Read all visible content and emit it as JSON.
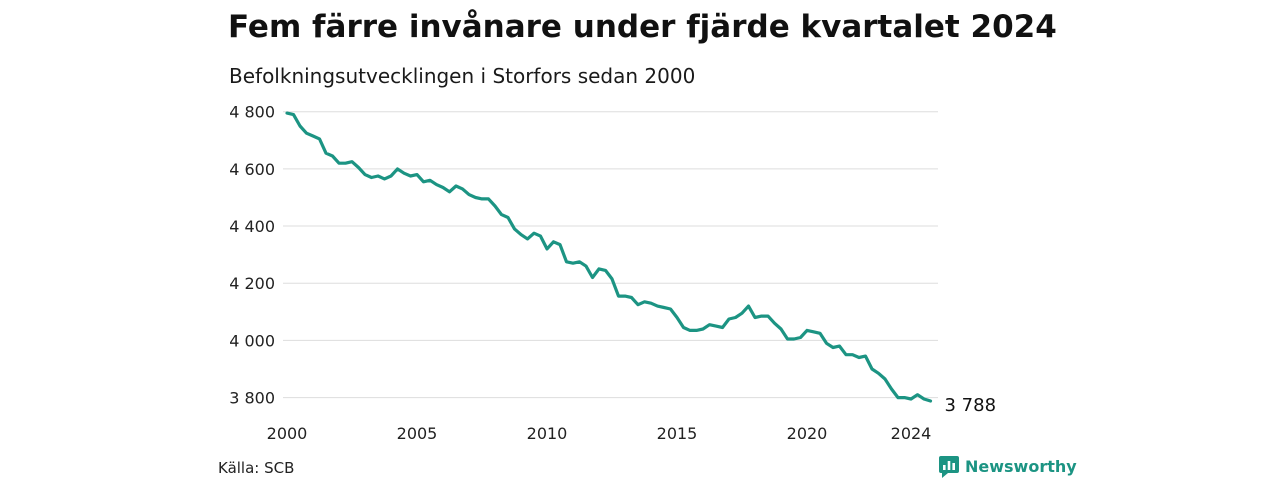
{
  "header": {
    "title": "Fem färre invånare under fjärde kvartalet 2024",
    "subtitle": "Befolkningsutvecklingen i Storfors sedan 2000"
  },
  "footer": {
    "source": "Källa: SCB",
    "brand": "Newsworthy",
    "brand_icon": "bar-chart-logo-icon"
  },
  "colors": {
    "line": "#1c9483",
    "grid": "#dddddd",
    "brand": "#1c9483"
  },
  "chart_data": {
    "type": "line",
    "x_start": 2000,
    "x_step": 0.25,
    "xlim": [
      2000,
      2025
    ],
    "ylim": [
      3760,
      4820
    ],
    "x_ticks": [
      {
        "value": 2000,
        "label": "2000"
      },
      {
        "value": 2005,
        "label": "2005"
      },
      {
        "value": 2010,
        "label": "2010"
      },
      {
        "value": 2015,
        "label": "2015"
      },
      {
        "value": 2020,
        "label": "2020"
      },
      {
        "value": 2024,
        "label": "2024"
      }
    ],
    "y_ticks": [
      {
        "value": 3800,
        "label": "3 800"
      },
      {
        "value": 4000,
        "label": "4 000"
      },
      {
        "value": 4200,
        "label": "4 200"
      },
      {
        "value": 4400,
        "label": "4 400"
      },
      {
        "value": 4600,
        "label": "4 600"
      },
      {
        "value": 4800,
        "label": "4 800"
      }
    ],
    "grid": true,
    "last_label": "3 788",
    "values": [
      4795,
      4790,
      4750,
      4725,
      4715,
      4705,
      4655,
      4645,
      4620,
      4620,
      4625,
      4605,
      4580,
      4570,
      4575,
      4565,
      4575,
      4600,
      4585,
      4575,
      4580,
      4555,
      4560,
      4545,
      4535,
      4520,
      4540,
      4530,
      4510,
      4500,
      4495,
      4495,
      4470,
      4440,
      4430,
      4390,
      4370,
      4355,
      4375,
      4365,
      4320,
      4345,
      4335,
      4275,
      4270,
      4275,
      4260,
      4220,
      4250,
      4245,
      4215,
      4155,
      4155,
      4150,
      4125,
      4135,
      4130,
      4120,
      4115,
      4110,
      4080,
      4045,
      4035,
      4035,
      4040,
      4055,
      4050,
      4045,
      4075,
      4080,
      4095,
      4120,
      4080,
      4085,
      4085,
      4060,
      4040,
      4005,
      4005,
      4010,
      4035,
      4030,
      4025,
      3990,
      3975,
      3980,
      3950,
      3950,
      3940,
      3945,
      3900,
      3885,
      3865,
      3830,
      3800,
      3800,
      3795,
      3810,
      3795,
      3788
    ]
  }
}
